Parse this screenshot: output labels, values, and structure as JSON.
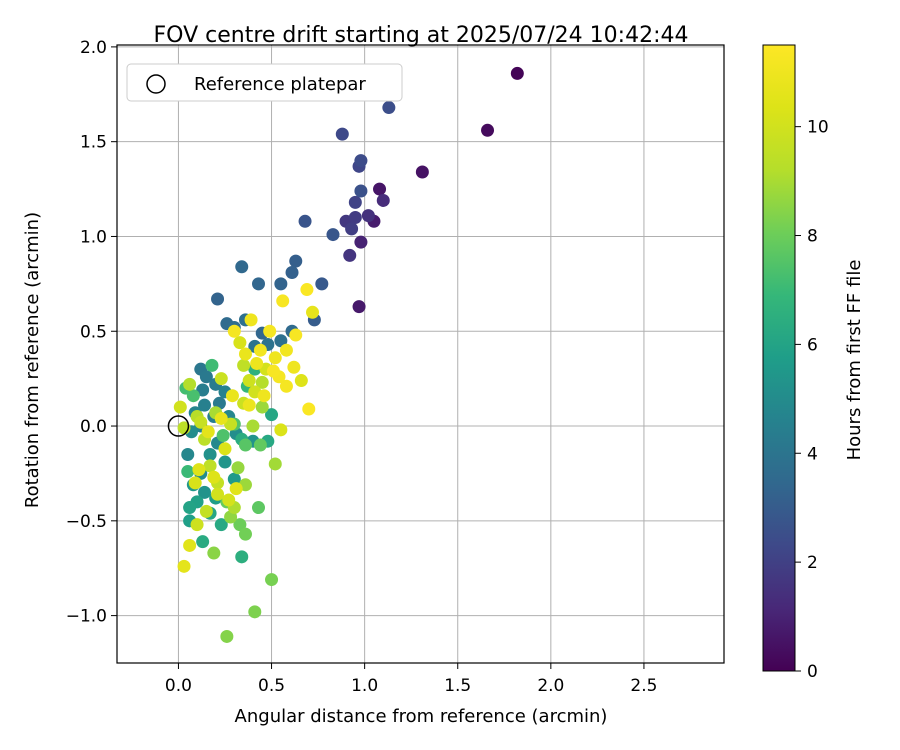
{
  "chart_data": {
    "type": "scatter",
    "title": "FOV centre drift starting at 2025/07/24 10:42:44",
    "xlabel": "Angular distance from reference (arcmin)",
    "ylabel": "Rotation from reference (arcmin)",
    "xlim": [
      -0.33,
      2.93
    ],
    "ylim": [
      -1.25,
      2.01
    ],
    "xticks": [
      0.0,
      0.5,
      1.0,
      1.5,
      2.0,
      2.5
    ],
    "xtick_labels": [
      "0.0",
      "0.5",
      "1.0",
      "1.5",
      "2.0",
      "2.5"
    ],
    "yticks": [
      -1.0,
      -0.5,
      0.0,
      0.5,
      1.0,
      1.5,
      2.0
    ],
    "ytick_labels": [
      "−1.0",
      "−0.5",
      "0.0",
      "0.5",
      "1.0",
      "1.5",
      "2.0"
    ],
    "grid": true,
    "legend": {
      "placement": "top-left",
      "entries": [
        "Reference platepar"
      ]
    },
    "reference_point": {
      "x": 0.0,
      "y": 0.0,
      "marker": "open-circle"
    },
    "colorbar": {
      "label": "Hours from first FF file",
      "colormap": "viridis",
      "range": [
        0,
        11.5
      ],
      "ticks": [
        0,
        2,
        4,
        6,
        8,
        10
      ],
      "tick_labels": [
        "0",
        "2",
        "4",
        "6",
        "8",
        "10"
      ]
    },
    "series": [
      {
        "color_by": "hours",
        "points": [
          [
            1.82,
            1.86,
            0.1
          ],
          [
            1.66,
            1.56,
            0.3
          ],
          [
            1.31,
            1.34,
            0.5
          ],
          [
            1.08,
            1.25,
            0.6
          ],
          [
            1.05,
            1.08,
            0.8
          ],
          [
            0.98,
            0.97,
            1.0
          ],
          [
            0.97,
            0.63,
            0.7
          ],
          [
            1.1,
            1.19,
            1.3
          ],
          [
            1.02,
            1.11,
            1.5
          ],
          [
            0.92,
            0.9,
            1.6
          ],
          [
            0.95,
            1.1,
            1.8
          ],
          [
            0.9,
            1.08,
            1.7
          ],
          [
            0.93,
            1.04,
            1.9
          ],
          [
            0.95,
            1.18,
            2.1
          ],
          [
            0.97,
            1.37,
            2.2
          ],
          [
            0.98,
            1.4,
            2.4
          ],
          [
            0.88,
            1.54,
            2.3
          ],
          [
            1.13,
            1.68,
            2.5
          ],
          [
            0.98,
            1.24,
            2.6
          ],
          [
            0.68,
            1.08,
            2.7
          ],
          [
            0.83,
            1.01,
            2.8
          ],
          [
            0.77,
            0.75,
            2.9
          ],
          [
            0.73,
            0.56,
            3.0
          ],
          [
            0.63,
            0.87,
            3.1
          ],
          [
            0.61,
            0.81,
            3.2
          ],
          [
            0.55,
            0.75,
            3.3
          ],
          [
            0.43,
            0.75,
            3.4
          ],
          [
            0.34,
            0.84,
            3.5
          ],
          [
            0.21,
            0.67,
            3.3
          ],
          [
            0.26,
            0.54,
            3.6
          ],
          [
            0.3,
            0.52,
            3.7
          ],
          [
            0.36,
            0.56,
            3.8
          ],
          [
            0.45,
            0.49,
            3.4
          ],
          [
            0.61,
            0.5,
            3.6
          ],
          [
            0.48,
            0.43,
            3.9
          ],
          [
            0.41,
            0.42,
            4.0
          ],
          [
            0.55,
            0.45,
            3.8
          ],
          [
            0.12,
            0.3,
            4.1
          ],
          [
            0.15,
            0.26,
            4.2
          ],
          [
            0.2,
            0.22,
            4.3
          ],
          [
            0.13,
            0.19,
            4.4
          ],
          [
            0.25,
            0.18,
            4.6
          ],
          [
            0.22,
            0.12,
            4.2
          ],
          [
            0.14,
            0.11,
            4.5
          ],
          [
            0.09,
            0.07,
            4.7
          ],
          [
            0.27,
            0.05,
            4.8
          ],
          [
            0.19,
            0.05,
            4.4
          ],
          [
            0.12,
            0.0,
            4.6
          ],
          [
            0.07,
            -0.03,
            5.0
          ],
          [
            0.31,
            -0.04,
            5.1
          ],
          [
            0.4,
            -0.08,
            5.3
          ],
          [
            0.21,
            -0.09,
            4.9
          ],
          [
            0.05,
            -0.15,
            4.8
          ],
          [
            0.17,
            -0.15,
            5.2
          ],
          [
            0.25,
            -0.19,
            5.4
          ],
          [
            0.12,
            -0.25,
            5.0
          ],
          [
            0.3,
            -0.28,
            5.6
          ],
          [
            0.08,
            -0.31,
            5.5
          ],
          [
            0.14,
            -0.35,
            5.3
          ],
          [
            0.2,
            -0.38,
            5.7
          ],
          [
            0.1,
            -0.4,
            5.9
          ],
          [
            0.06,
            -0.43,
            6.0
          ],
          [
            0.17,
            -0.46,
            6.1
          ],
          [
            0.23,
            -0.52,
            6.2
          ],
          [
            0.06,
            -0.5,
            5.8
          ],
          [
            0.13,
            -0.61,
            6.3
          ],
          [
            0.34,
            -0.69,
            6.5
          ],
          [
            0.34,
            -0.07,
            6.4
          ],
          [
            0.48,
            -0.08,
            6.2
          ],
          [
            0.5,
            0.06,
            6.1
          ],
          [
            0.41,
            0.3,
            6.6
          ],
          [
            0.37,
            0.21,
            6.8
          ],
          [
            0.05,
            -0.24,
            7.0
          ],
          [
            0.04,
            0.2,
            7.2
          ],
          [
            0.18,
            0.32,
            7.1
          ],
          [
            0.08,
            0.16,
            7.3
          ],
          [
            0.24,
            -0.05,
            7.4
          ],
          [
            0.3,
            0.01,
            7.5
          ],
          [
            0.36,
            -0.1,
            7.6
          ],
          [
            0.43,
            -0.43,
            7.7
          ],
          [
            0.44,
            -0.1,
            7.8
          ],
          [
            0.26,
            -0.4,
            7.9
          ],
          [
            0.33,
            -0.52,
            8.0
          ],
          [
            0.36,
            -0.57,
            8.1
          ],
          [
            0.5,
            -0.81,
            8.2
          ],
          [
            0.41,
            -0.98,
            8.3
          ],
          [
            0.26,
            -1.11,
            8.4
          ],
          [
            0.19,
            -0.67,
            8.5
          ],
          [
            0.28,
            -0.48,
            8.6
          ],
          [
            0.32,
            -0.22,
            8.7
          ],
          [
            0.45,
            0.1,
            8.8
          ],
          [
            0.52,
            -0.2,
            8.9
          ],
          [
            0.2,
            0.07,
            9.0
          ],
          [
            0.06,
            0.22,
            9.2
          ],
          [
            0.1,
            0.05,
            9.3
          ],
          [
            0.14,
            -0.07,
            9.4
          ],
          [
            0.17,
            -0.21,
            9.5
          ],
          [
            0.21,
            -0.3,
            9.6
          ],
          [
            0.28,
            0.01,
            9.7
          ],
          [
            0.35,
            0.12,
            9.8
          ],
          [
            0.38,
            0.24,
            9.9
          ],
          [
            0.41,
            0.18,
            10.0
          ],
          [
            0.47,
            0.3,
            10.1
          ],
          [
            0.33,
            0.44,
            10.2
          ],
          [
            0.25,
            -0.12,
            10.3
          ],
          [
            0.11,
            -0.23,
            10.4
          ],
          [
            0.06,
            -0.63,
            10.5
          ],
          [
            0.03,
            -0.74,
            10.6
          ],
          [
            0.01,
            0.1,
            10.0
          ],
          [
            0.55,
            -0.02,
            10.3
          ],
          [
            0.66,
            0.24,
            10.4
          ],
          [
            0.72,
            0.6,
            10.7
          ],
          [
            0.36,
            0.38,
            10.8
          ],
          [
            0.42,
            0.33,
            10.9
          ],
          [
            0.52,
            0.36,
            11.0
          ],
          [
            0.58,
            0.4,
            11.1
          ],
          [
            0.49,
            0.5,
            11.2
          ],
          [
            0.56,
            0.66,
            11.3
          ],
          [
            0.69,
            0.72,
            11.4
          ],
          [
            0.63,
            0.48,
            11.3
          ],
          [
            0.54,
            0.26,
            11.2
          ],
          [
            0.62,
            0.31,
            11.0
          ],
          [
            0.7,
            0.09,
            11.4
          ],
          [
            0.3,
            0.5,
            11.2
          ],
          [
            0.39,
            0.56,
            11.0
          ],
          [
            0.44,
            0.4,
            11.1
          ],
          [
            0.51,
            0.29,
            11.3
          ],
          [
            0.58,
            0.21,
            11.2
          ],
          [
            0.46,
            0.16,
            11.0
          ],
          [
            0.38,
            0.11,
            10.9
          ],
          [
            0.29,
            0.16,
            10.8
          ],
          [
            0.23,
            0.04,
            10.7
          ],
          [
            0.16,
            -0.03,
            10.6
          ],
          [
            0.31,
            -0.33,
            10.5
          ],
          [
            0.19,
            -0.27,
            10.4
          ],
          [
            0.09,
            -0.3,
            10.2
          ],
          [
            0.27,
            -0.39,
            10.1
          ],
          [
            0.23,
            0.25,
            9.8
          ],
          [
            0.35,
            0.32,
            9.5
          ],
          [
            0.45,
            0.23,
            9.2
          ],
          [
            0.4,
            0.0,
            9.0
          ],
          [
            0.36,
            -0.31,
            8.8
          ],
          [
            0.3,
            -0.43,
            9.1
          ],
          [
            0.15,
            -0.45,
            9.6
          ],
          [
            0.1,
            -0.52,
            9.9
          ],
          [
            0.21,
            -0.36,
            10.0
          ],
          [
            0.12,
            0.02,
            9.7
          ],
          [
            0.03,
            -0.01,
            9.4
          ]
        ]
      }
    ]
  }
}
